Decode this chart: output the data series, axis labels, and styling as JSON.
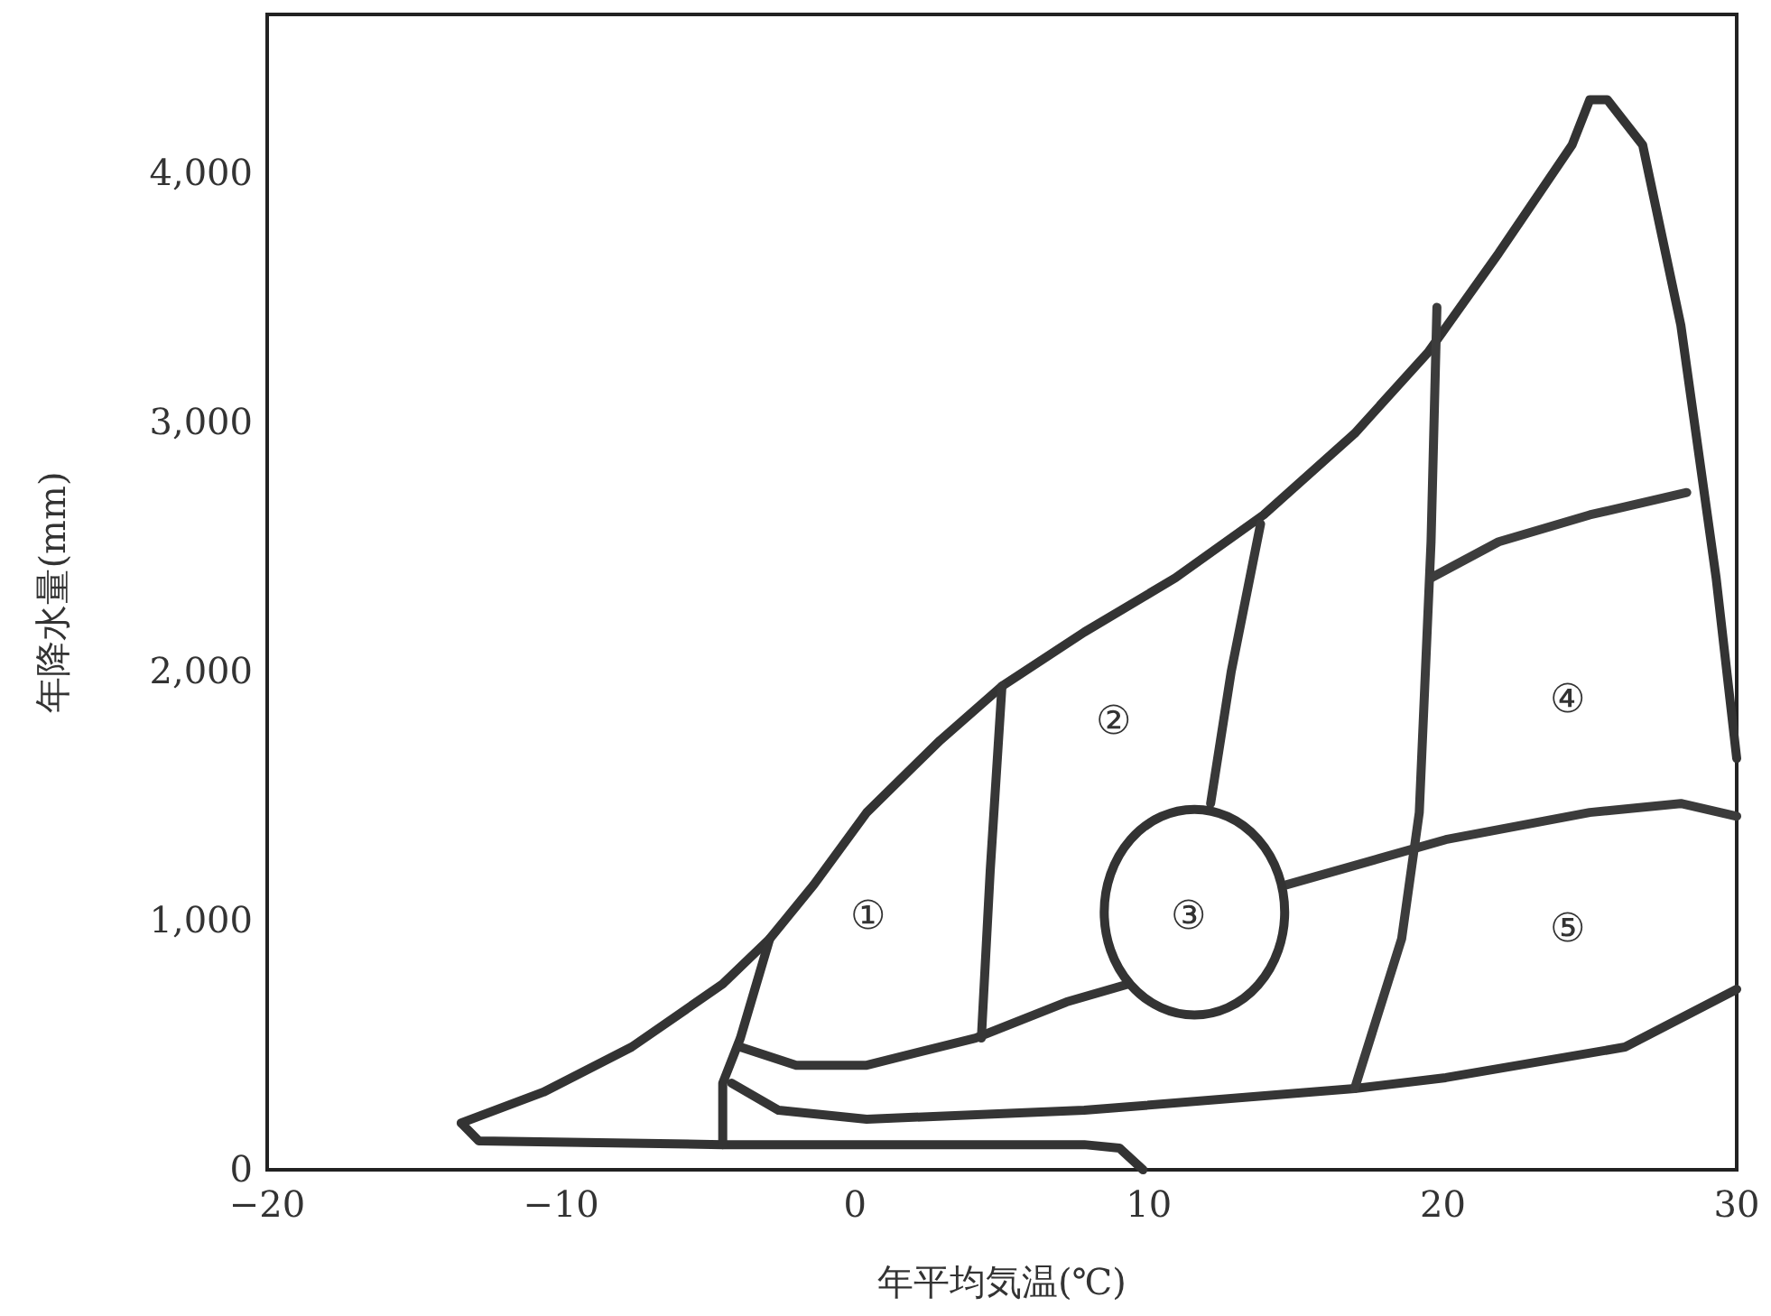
{
  "chart_data": {
    "type": "line",
    "xlabel": "年平均気温(℃)",
    "ylabel": "年降水量(mm)",
    "xlim": [
      -20,
      30
    ],
    "ylim": [
      0,
      4640
    ],
    "xticks": [
      {
        "value": -20,
        "label": "−20"
      },
      {
        "value": -10,
        "label": "−10"
      },
      0,
      10,
      20,
      30
    ],
    "yticks": [
      0,
      {
        "value": 1000,
        "label": "1,000"
      },
      {
        "value": 2000,
        "label": "2,000"
      },
      {
        "value": 3000,
        "label": "3,000"
      },
      {
        "value": 4000,
        "label": "4,000"
      }
    ],
    "grid": false,
    "legend": false,
    "marker": "none",
    "line_style": "solid",
    "series": [
      {
        "color": "#333333",
        "x": [
          9.8,
          9.0,
          7.8,
          -4.5,
          -12.8,
          -13.4,
          -10.6,
          -7.6,
          -4.5,
          -2.9,
          -1.4,
          0.4,
          2.9,
          5.0,
          7.8,
          10.9,
          13.9,
          17.0,
          19.5,
          21.9,
          24.4,
          25.0,
          25.6,
          26.8,
          28.1,
          29.3,
          30
        ],
        "values": [
          0,
          87,
          101,
          101,
          116,
          188,
          312,
          493,
          746,
          928,
          1145,
          1435,
          1725,
          1942,
          2159,
          2377,
          2630,
          2957,
          3283,
          3681,
          4116,
          4297,
          4297,
          4116,
          3391,
          2377,
          1652
        ]
      },
      {
        "color": "#343434",
        "x": [
          -4.5,
          -4.5,
          -3.9,
          -2.9
        ],
        "values": [
          101,
          348,
          529,
          928
        ]
      },
      {
        "color": "#353535",
        "x": [
          -4.2,
          -2.6,
          0.4,
          7.8,
          17.0,
          20.1,
          26.2,
          30
        ],
        "values": [
          348,
          239,
          203,
          239,
          326,
          370,
          493,
          725
        ]
      },
      {
        "color": "#363636",
        "x": [
          -3.9,
          -2.0,
          0.4,
          4.1,
          7.2,
          9.3
        ],
        "values": [
          493,
          420,
          420,
          529,
          674,
          746
        ]
      },
      {
        "color": "#373737",
        "x": [
          5.0,
          4.6,
          4.3
        ],
        "values": [
          1942,
          1200,
          529
        ]
      },
      {
        "color": "#383838",
        "x": [
          13.8,
          12.8,
          12.1
        ],
        "values": [
          2594,
          2000,
          1471
        ]
      },
      {
        "color": "#3b3b3b",
        "x": [
          14.7,
          20.1,
          25.0,
          28.1,
          30
        ],
        "values": [
          1145,
          1326,
          1435,
          1471,
          1420
        ]
      },
      {
        "color": "#3c3c3c",
        "x": [
          19.8,
          19.6,
          19.2,
          18.6,
          17.0
        ],
        "values": [
          3464,
          2522,
          1435,
          928,
          326
        ]
      },
      {
        "color": "#3d3d3d",
        "x": [
          19.6,
          21.9,
          25.0,
          28.3
        ],
        "values": [
          2377,
          2522,
          2630,
          2720
        ]
      }
    ],
    "annotations": [
      "①",
      "②",
      "③",
      "④",
      "⑤"
    ]
  }
}
